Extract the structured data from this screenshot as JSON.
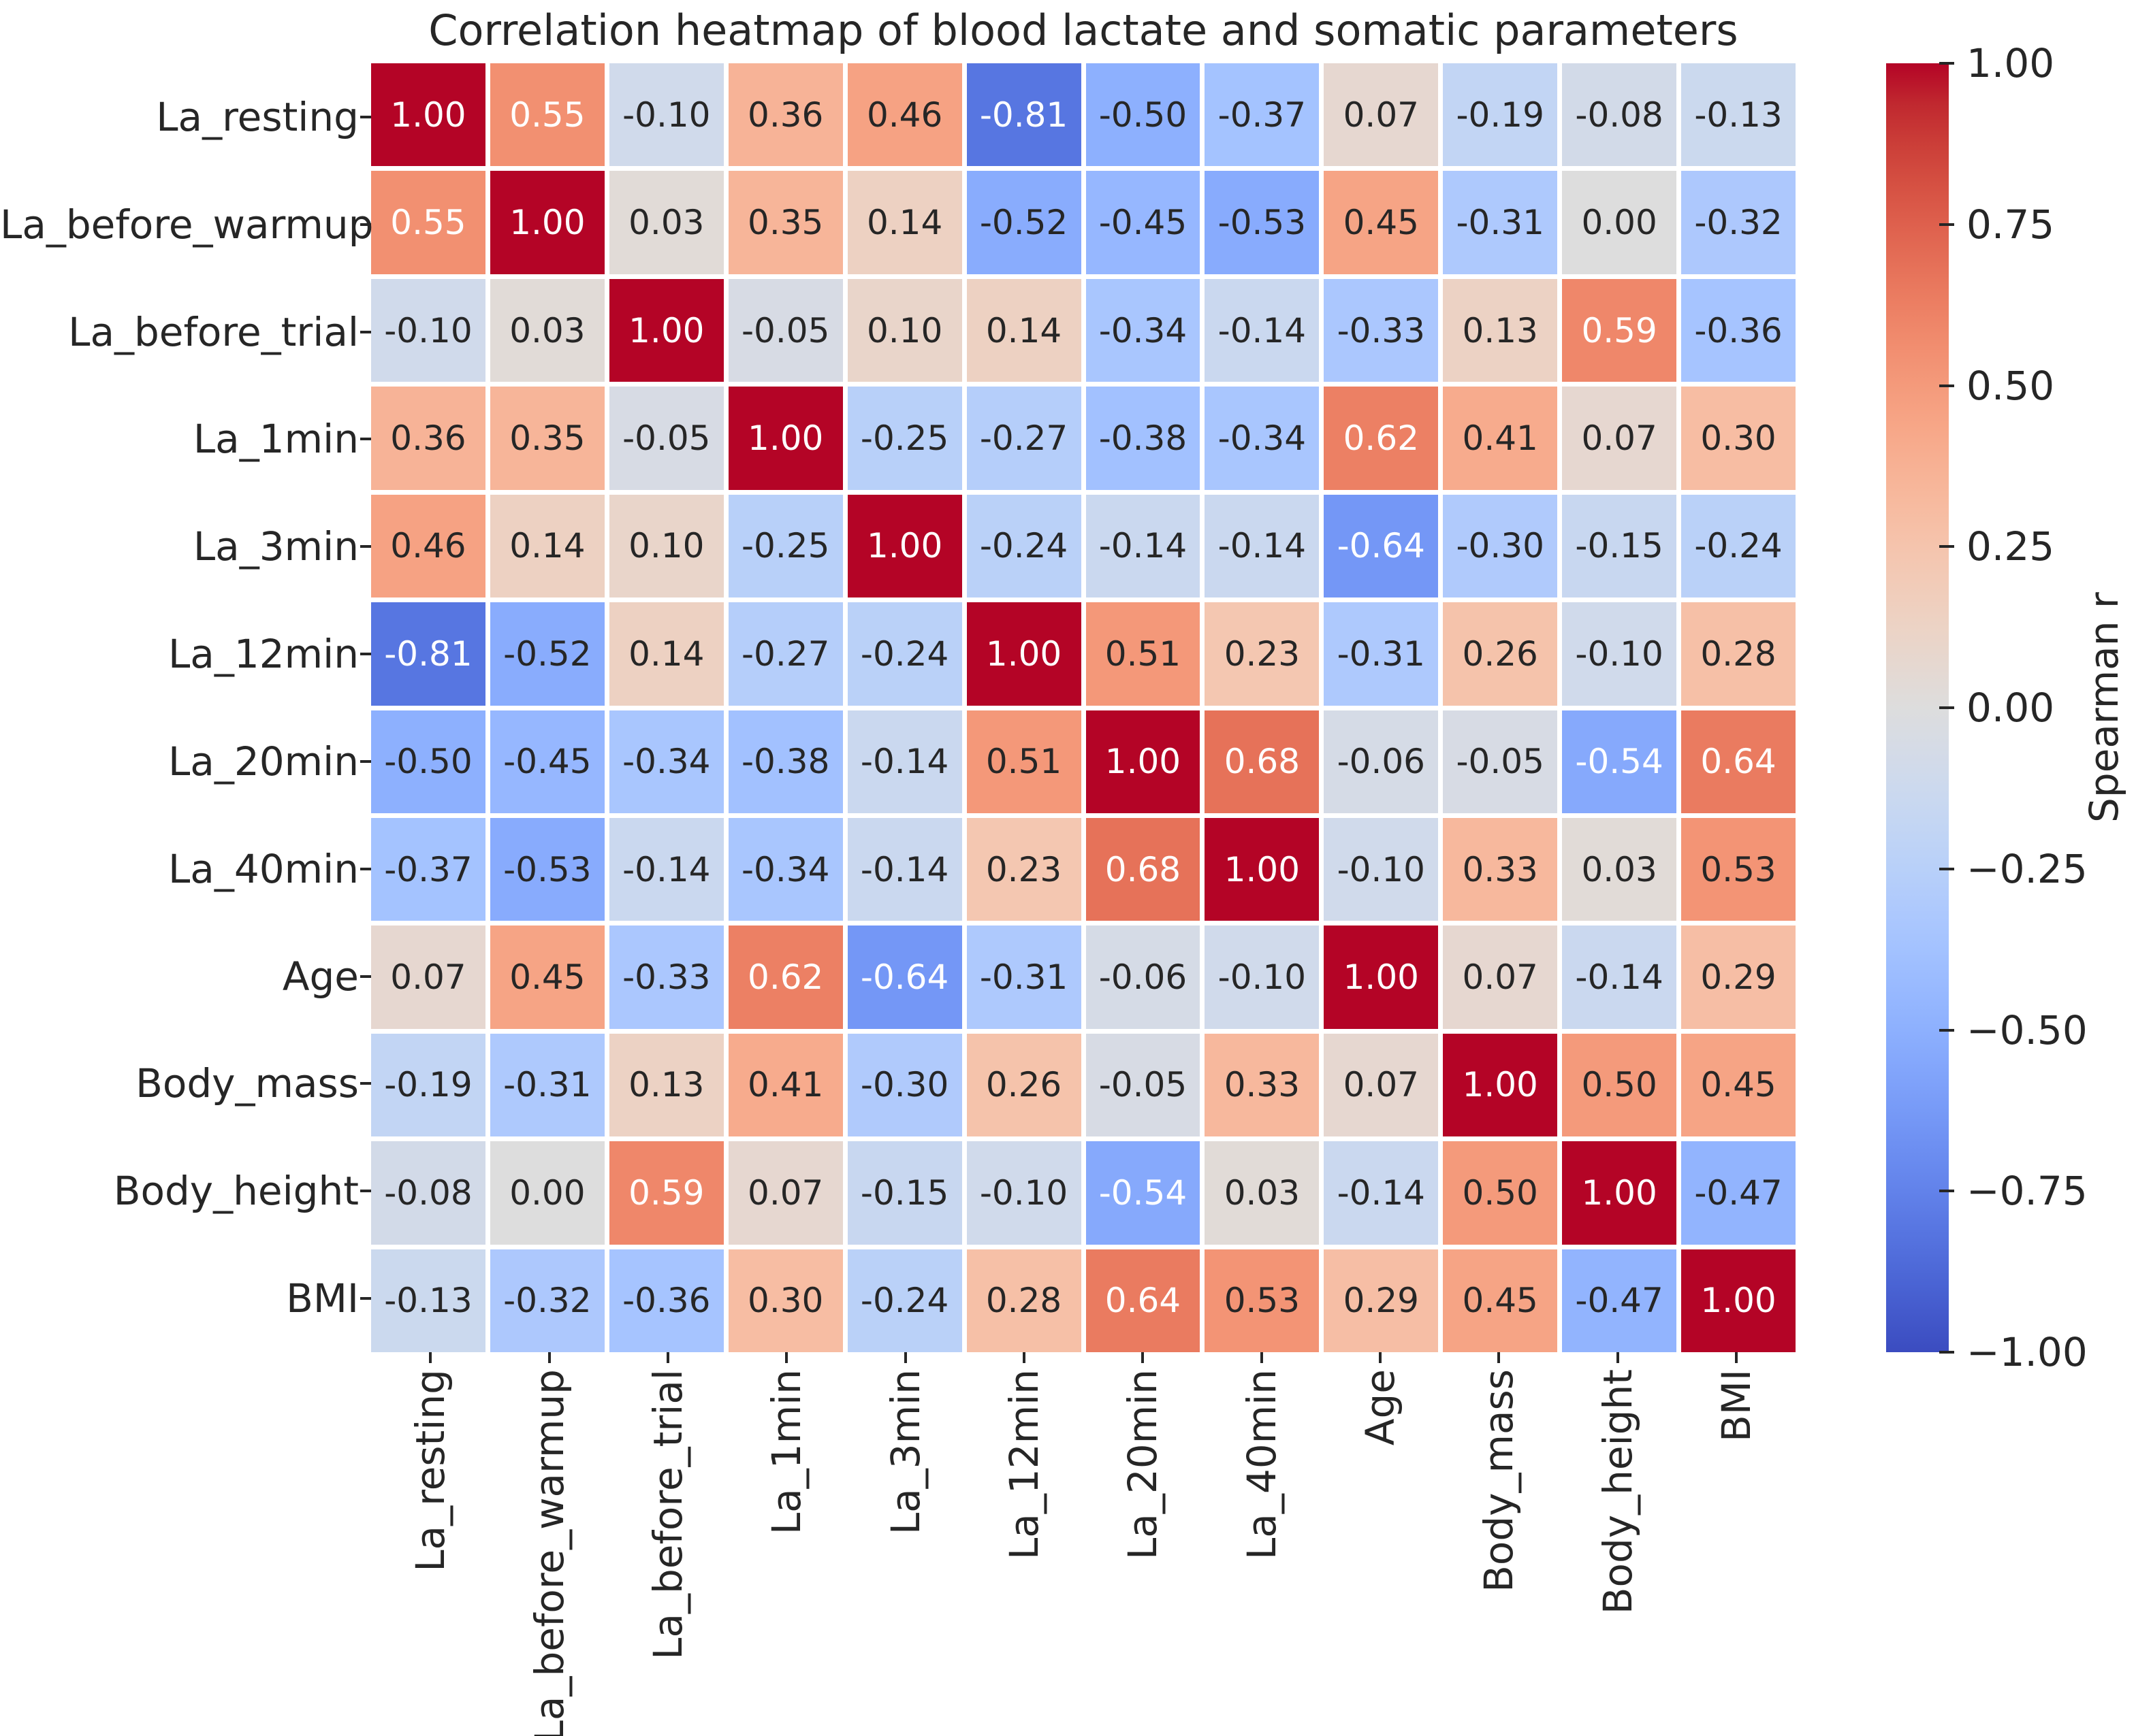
{
  "figure": {
    "title": "Correlation heatmap of blood lactate and somatic parameters"
  },
  "chart_data": {
    "type": "heatmap",
    "title": "Correlation heatmap of blood lactate and somatic parameters",
    "categories": [
      "La_resting",
      "La_before_warmup",
      "La_before_trial",
      "La_1min",
      "La_3min",
      "La_12min",
      "La_20min",
      "La_40min",
      "Age",
      "Body_mass",
      "Body_height",
      "BMI"
    ],
    "matrix": [
      [
        1.0,
        0.55,
        -0.1,
        0.36,
        0.46,
        -0.81,
        -0.5,
        -0.37,
        0.07,
        -0.19,
        -0.08,
        -0.13
      ],
      [
        0.55,
        1.0,
        0.03,
        0.35,
        0.14,
        -0.52,
        -0.45,
        -0.53,
        0.45,
        -0.31,
        0.0,
        -0.32
      ],
      [
        -0.1,
        0.03,
        1.0,
        -0.05,
        0.1,
        0.14,
        -0.34,
        -0.14,
        -0.33,
        0.13,
        0.59,
        -0.36
      ],
      [
        0.36,
        0.35,
        -0.05,
        1.0,
        -0.25,
        -0.27,
        -0.38,
        -0.34,
        0.62,
        0.41,
        0.07,
        0.3
      ],
      [
        0.46,
        0.14,
        0.1,
        -0.25,
        1.0,
        -0.24,
        -0.14,
        -0.14,
        -0.64,
        -0.3,
        -0.15,
        -0.24
      ],
      [
        -0.81,
        -0.52,
        0.14,
        -0.27,
        -0.24,
        1.0,
        0.51,
        0.23,
        -0.31,
        0.26,
        -0.1,
        0.28
      ],
      [
        -0.5,
        -0.45,
        -0.34,
        -0.38,
        -0.14,
        0.51,
        1.0,
        0.68,
        -0.06,
        -0.05,
        -0.54,
        0.64
      ],
      [
        -0.37,
        -0.53,
        -0.14,
        -0.34,
        -0.14,
        0.23,
        0.68,
        1.0,
        -0.1,
        0.33,
        0.03,
        0.53
      ],
      [
        0.07,
        0.45,
        -0.33,
        0.62,
        -0.64,
        -0.31,
        -0.06,
        -0.1,
        1.0,
        0.07,
        -0.14,
        0.29
      ],
      [
        -0.19,
        -0.31,
        0.13,
        0.41,
        -0.3,
        0.26,
        -0.05,
        0.33,
        0.07,
        1.0,
        0.5,
        0.45
      ],
      [
        -0.08,
        0.0,
        0.59,
        0.07,
        -0.15,
        -0.1,
        -0.54,
        0.03,
        -0.14,
        0.5,
        1.0,
        -0.47
      ],
      [
        -0.13,
        -0.32,
        -0.36,
        0.3,
        -0.24,
        0.28,
        0.64,
        0.53,
        0.29,
        0.45,
        -0.47,
        1.0
      ]
    ],
    "value_format": "0.00",
    "vmin": -1.0,
    "vmax": 1.0,
    "colormap": "coolwarm",
    "grid": false,
    "colorbar": {
      "label": "Spearman r",
      "position": "right",
      "ticks": [
        1.0,
        0.75,
        0.5,
        0.25,
        0.0,
        -0.25,
        -0.5,
        -0.75,
        -1.0
      ],
      "tick_labels": [
        "1.00",
        "0.75",
        "0.50",
        "0.25",
        "0.00",
        "−0.25",
        "−0.50",
        "−0.75",
        "−1.00"
      ],
      "color_max": "#b40426",
      "color_mid": "#dddddd",
      "color_min": "#3b4cc0"
    },
    "annotation_text_dark": "#262626",
    "annotation_text_light": "#ffffff"
  }
}
